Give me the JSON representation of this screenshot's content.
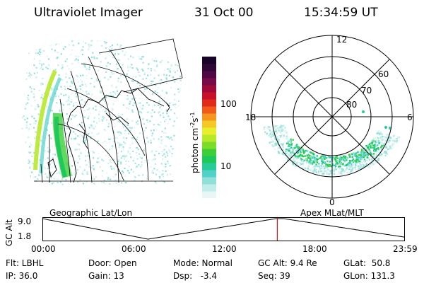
{
  "header": {
    "title": "Ultraviolet Imager",
    "date": "31 Oct 00",
    "time": "15:34:59 UT"
  },
  "colorbar": {
    "unit_label": "photon cm",
    "unit_sup1": "-2",
    "unit_mid": "s",
    "unit_sup2": "-1",
    "ticks": [
      "100",
      "10"
    ],
    "colors": [
      "#e8f6f6",
      "#c0ecec",
      "#8fe0d8",
      "#50d2c8",
      "#28cc98",
      "#1ec85a",
      "#3ccf3a",
      "#7cdc28",
      "#b8e82a",
      "#e8f02e",
      "#f5c826",
      "#f5961e",
      "#f05a1a",
      "#e02a1a",
      "#c8102a",
      "#a00a3a",
      "#780a48",
      "#500844",
      "#300838",
      "#180428"
    ]
  },
  "left_map": {
    "caption": "Geographic Lat/Lon"
  },
  "polar_plot": {
    "caption": "Apex MLat/MLT",
    "mlt_labels": {
      "top": "12",
      "left": "18",
      "right": "6",
      "bottom": "0"
    },
    "lat_labels": [
      "60",
      "70",
      "80"
    ]
  },
  "timeline": {
    "ylabel": "GC Alt",
    "ticks_y": [
      "9.0",
      "1.8"
    ],
    "ticks_x": [
      "00:00",
      "06:00",
      "12:00",
      "18:00",
      "23:59"
    ],
    "marker_time_hours": 15.58
  },
  "status": {
    "flt": "Flt: LBHL",
    "ip": "IP: 36.0",
    "door": "Door: Open",
    "gain": "Gain: 13",
    "mode": "Mode: Normal",
    "dsp": "Dsp:   -3.4",
    "gc_alt": "GC Alt: 9.4 Re",
    "seq": "Seq: 39",
    "glat": "GLat:  50.8",
    "glon": "GLon: 131.3"
  }
}
